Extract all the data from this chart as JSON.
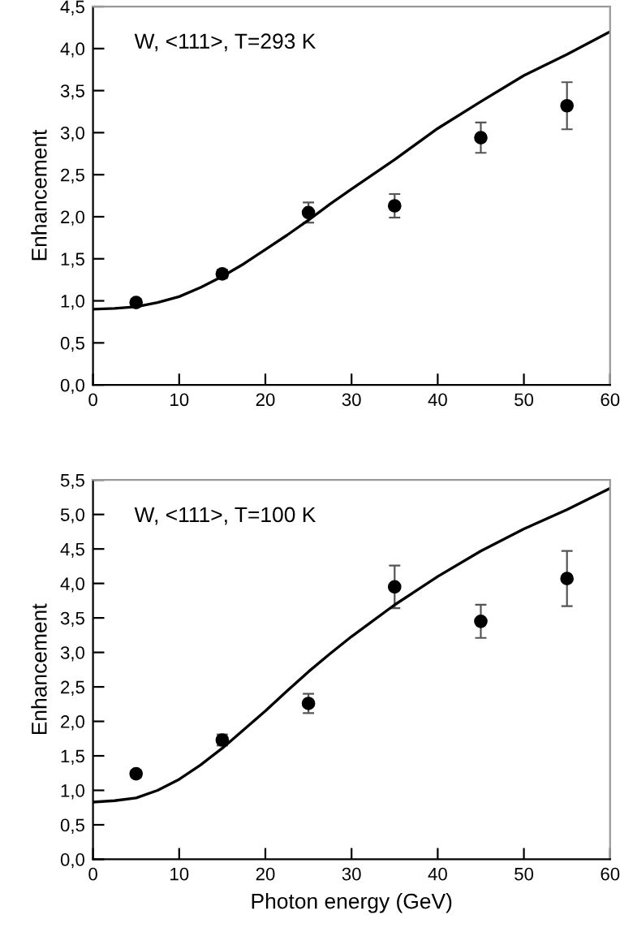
{
  "chart_data": [
    {
      "type": "scatter",
      "ylabel": "Enhancement",
      "annotations": [
        "W, <111>, T=293 K"
      ],
      "xlim": [
        0,
        60
      ],
      "ylim": [
        0,
        4.5
      ],
      "xticks": [
        0,
        10,
        20,
        30,
        40,
        50,
        60
      ],
      "yticks": [
        {
          "value": 0,
          "label": "0,0"
        },
        {
          "value": 0.5,
          "label": "0,5"
        },
        {
          "value": 1,
          "label": "1,0"
        },
        {
          "value": 1.5,
          "label": "1,5"
        },
        {
          "value": 2,
          "label": "2,0"
        },
        {
          "value": 2.5,
          "label": "2,5"
        },
        {
          "value": 3,
          "label": "3,0"
        },
        {
          "value": 3.5,
          "label": "3,5"
        },
        {
          "value": 4,
          "label": "4,0"
        },
        {
          "value": 4.5,
          "label": "4,5"
        }
      ],
      "grid": false,
      "series": [
        {
          "color": "#000000",
          "marker": "circle",
          "x": [
            5,
            15,
            25,
            35,
            45,
            55
          ],
          "values": [
            0.98,
            1.32,
            2.05,
            2.13,
            2.94,
            3.32
          ],
          "errors": [
            0.04,
            0.05,
            0.12,
            0.14,
            0.18,
            0.28
          ]
        },
        {
          "type": "line",
          "color": "#000000",
          "marker": "none",
          "line_style": "solid",
          "x": [
            0,
            2.5,
            5,
            7.5,
            10,
            12.5,
            15,
            17.5,
            20,
            22.5,
            25,
            27.5,
            30,
            35,
            40,
            45,
            50,
            55,
            60
          ],
          "values": [
            0.9,
            0.91,
            0.93,
            0.98,
            1.05,
            1.16,
            1.29,
            1.44,
            1.61,
            1.78,
            1.96,
            2.15,
            2.33,
            2.68,
            3.05,
            3.37,
            3.68,
            3.93,
            4.2
          ]
        }
      ]
    },
    {
      "type": "scatter",
      "xlabel": "Photon energy (GeV)",
      "ylabel": "Enhancement",
      "annotations": [
        "W, <111>, T=100 K"
      ],
      "xlim": [
        0,
        60
      ],
      "ylim": [
        0,
        5.5
      ],
      "xticks": [
        0,
        10,
        20,
        30,
        40,
        50,
        60
      ],
      "yticks": [
        {
          "value": 0,
          "label": "0,0"
        },
        {
          "value": 0.5,
          "label": "0,5"
        },
        {
          "value": 1,
          "label": "1,0"
        },
        {
          "value": 1.5,
          "label": "1,5"
        },
        {
          "value": 2,
          "label": "2,0"
        },
        {
          "value": 2.5,
          "label": "2,5"
        },
        {
          "value": 3,
          "label": "3,0"
        },
        {
          "value": 3.5,
          "label": "3,5"
        },
        {
          "value": 4,
          "label": "4,0"
        },
        {
          "value": 4.5,
          "label": "4,5"
        },
        {
          "value": 5,
          "label": "5,0"
        },
        {
          "value": 5.5,
          "label": "5,5"
        }
      ],
      "grid": false,
      "series": [
        {
          "color": "#000000",
          "marker": "circle",
          "x": [
            5,
            15,
            25,
            35,
            45,
            55
          ],
          "values": [
            1.24,
            1.73,
            2.26,
            3.95,
            3.45,
            4.07
          ],
          "errors": [
            0.05,
            0.08,
            0.14,
            0.31,
            0.24,
            0.4
          ]
        },
        {
          "type": "line",
          "color": "#000000",
          "marker": "none",
          "line_style": "solid",
          "x": [
            0,
            2.5,
            5,
            7.5,
            10,
            12.5,
            15,
            17.5,
            20,
            22.5,
            25,
            27.5,
            30,
            35,
            40,
            45,
            50,
            55,
            60
          ],
          "values": [
            0.83,
            0.85,
            0.89,
            1.0,
            1.16,
            1.37,
            1.61,
            1.88,
            2.15,
            2.44,
            2.72,
            2.98,
            3.23,
            3.69,
            4.1,
            4.47,
            4.79,
            5.07,
            5.38
          ]
        }
      ]
    }
  ]
}
